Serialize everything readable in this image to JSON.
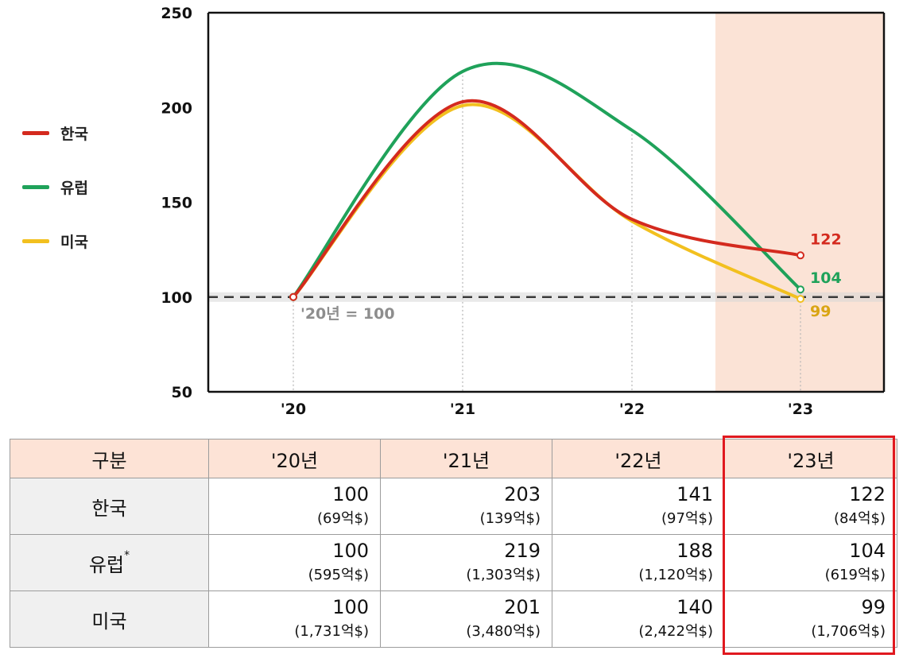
{
  "chart_data": {
    "type": "line",
    "x": [
      "'20",
      "'21",
      "'22",
      "'23"
    ],
    "ylim": [
      50,
      250
    ],
    "yticks": [
      "50",
      "100",
      "150",
      "200",
      "250"
    ],
    "baseline": {
      "value": 100,
      "label": "'20년 = 100"
    },
    "highlight_x": "'23",
    "series": [
      {
        "name": "한국",
        "values": [
          100,
          203,
          141,
          122
        ],
        "color": "#d42a1e",
        "end_label": "122"
      },
      {
        "name": "유럽",
        "values": [
          100,
          219,
          188,
          104
        ],
        "color": "#1fa25a",
        "end_label": "104"
      },
      {
        "name": "미국",
        "values": [
          100,
          201,
          140,
          99
        ],
        "color": "#f2c01f",
        "end_label": "99"
      }
    ],
    "legend_position": "left",
    "grid": "vertical dotted"
  },
  "table": {
    "corner": "구분",
    "columns": [
      "'20년",
      "'21년",
      "'22년",
      "'23년"
    ],
    "rows": [
      {
        "label": "한국",
        "mark": "",
        "values": [
          "100",
          "203",
          "141",
          "122"
        ],
        "amounts": [
          "(69억$)",
          "(139억$)",
          "(97억$)",
          "(84억$)"
        ]
      },
      {
        "label": "유럽",
        "mark": "*",
        "values": [
          "100",
          "219",
          "188",
          "104"
        ],
        "amounts": [
          "(595억$)",
          "(1,303억$)",
          "(1,120억$)",
          "(619억$)"
        ]
      },
      {
        "label": "미국",
        "mark": "",
        "values": [
          "100",
          "201",
          "140",
          "99"
        ],
        "amounts": [
          "(1,731억$)",
          "(3,480억$)",
          "(2,422억$)",
          "(1,706억$)"
        ]
      }
    ]
  },
  "colors": {
    "highlight_band": "#fbe3d6",
    "highlight_border": "#e0191f",
    "header_bg": "#fde3d6",
    "rowhead_bg": "#f0f0f0"
  }
}
